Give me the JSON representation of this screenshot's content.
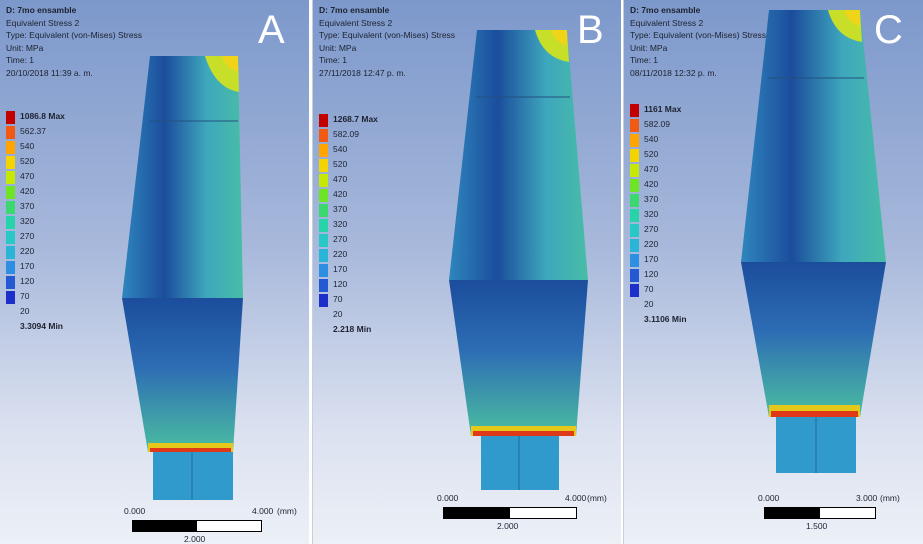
{
  "colors": {
    "legend": [
      "#c30000",
      "#f25a14",
      "#ffa400",
      "#f3d400",
      "#c6e806",
      "#6ee524",
      "#3bd86f",
      "#27d3a9",
      "#28c8c7",
      "#2ab4d8",
      "#2e8ee2",
      "#2459d4",
      "#1c2fc8"
    ],
    "fea": {
      "dark": "#1b4d9c",
      "mid": "#2f72b8",
      "light": "#3a9ec3",
      "cyan": "#3fb6b8",
      "green": "#4cbf9c",
      "hot": "#e8d01c",
      "red": "#e02a14"
    }
  },
  "panels": [
    {
      "letter": "A",
      "info": {
        "title": "D: 7mo ensamble",
        "result": "Equivalent Stress 2",
        "type": "Type: Equivalent (von-Mises) Stress",
        "unit": "Unit: MPa",
        "time": "Time: 1",
        "date": "20/10/2018 11:39 a. m."
      },
      "legend": [
        "1086.8 Max",
        "562.37",
        "540",
        "520",
        "470",
        "420",
        "370",
        "320",
        "270",
        "220",
        "170",
        "120",
        "70",
        "20",
        "3.3094 Min"
      ],
      "scale": {
        "start": "0.000",
        "end": "4.000",
        "unit": "(mm)",
        "mid": "2.000"
      }
    },
    {
      "letter": "B",
      "info": {
        "title": "D: 7mo ensamble",
        "result": "Equivalent Stress 2",
        "type": "Type: Equivalent (von-Mises) Stress",
        "unit": "Unit: MPa",
        "time": "Time: 1",
        "date": "27/11/2018 12:47 p. m."
      },
      "legend": [
        "1268.7 Max",
        "582.09",
        "540",
        "520",
        "470",
        "420",
        "370",
        "320",
        "270",
        "220",
        "170",
        "120",
        "70",
        "20",
        "2.218 Min"
      ],
      "scale": {
        "start": "0.000",
        "end": "4.000",
        "unit": "(mm)",
        "mid": "2.000"
      }
    },
    {
      "letter": "C",
      "info": {
        "title": "D: 7mo ensamble",
        "result": "Equivalent Stress 2",
        "type": "Type: Equivalent (von-Mises) Stress",
        "unit": "Unit: MPa",
        "time": "Time: 1",
        "date": "08/11/2018 12:32 p. m."
      },
      "legend": [
        "1161 Max",
        "582.09",
        "540",
        "520",
        "470",
        "420",
        "370",
        "320",
        "270",
        "220",
        "170",
        "120",
        "70",
        "20",
        "3.1106 Min"
      ],
      "scale": {
        "start": "0.000",
        "end": "3.000",
        "unit": "(mm)",
        "mid": "1.500"
      }
    }
  ]
}
